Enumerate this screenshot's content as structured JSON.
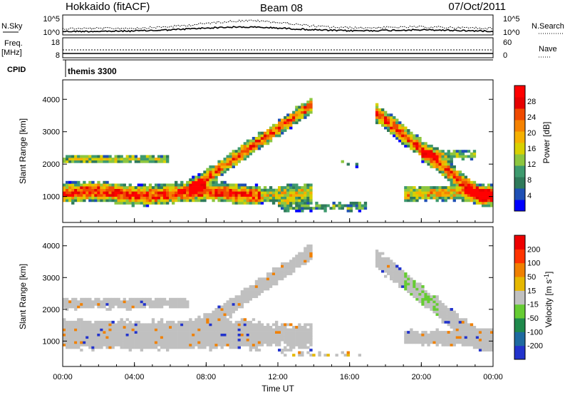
{
  "header": {
    "title_left": "Hokkaido (fitACF)",
    "title_center": "Beam 08",
    "title_right": "07/Oct/2011"
  },
  "top_panels": {
    "nsky": {
      "label": "N.Sky",
      "ytick_top": "10^5",
      "ytick_bottom": "10^0",
      "right_label": "N.Search",
      "rtick_top": "10^5",
      "rtick_bottom": "10^0"
    },
    "freq": {
      "label_line1": "Freq.",
      "label_line2": "[MHz]",
      "ytick_top": "18",
      "ytick_bottom": "8",
      "right_label": "Nave",
      "rtick_top": "60",
      "rtick_bottom": "0"
    },
    "cpid": {
      "label": "CPID",
      "value": "themis 3300"
    }
  },
  "chart_data": [
    {
      "type": "heatmap",
      "name": "power",
      "ylabel": "Slant Range [km]",
      "yticks": [
        1000,
        2000,
        3000,
        4000
      ],
      "ylim": [
        200,
        4600
      ],
      "xlabel": "",
      "colorbar": {
        "label": "Power [dB]",
        "ticks": [
          "28",
          "24",
          "20",
          "16",
          "12",
          "8",
          "4"
        ],
        "colors": [
          "#0000ff",
          "#1e4fb4",
          "#2f7a5a",
          "#3e9a6e",
          "#8dc63f",
          "#d8d000",
          "#f5b000",
          "#f58200",
          "#f04a00",
          "#e60000",
          "#ff0000"
        ]
      }
    },
    {
      "type": "heatmap",
      "name": "velocity",
      "ylabel": "Slant Range [km]",
      "yticks": [
        1000,
        2000,
        3000,
        4000
      ],
      "ylim": [
        200,
        4600
      ],
      "xlabel": "Time UT",
      "xticks": [
        "00:00",
        "04:00",
        "08:00",
        "12:00",
        "16:00",
        "20:00",
        "00:00"
      ],
      "colorbar": {
        "label": "Velocity [m s",
        "label_exp": "-1",
        "label_end": "]",
        "ticks": [
          "200",
          "100",
          "50",
          "15",
          "-15",
          "-50",
          "-100",
          "-200"
        ],
        "colors": [
          "#2233cc",
          "#1e6aa0",
          "#1f8a4c",
          "#66cc33",
          "#c0c0c0",
          "#e6b800",
          "#f08000",
          "#ff3300",
          "#ee0000"
        ]
      }
    }
  ]
}
